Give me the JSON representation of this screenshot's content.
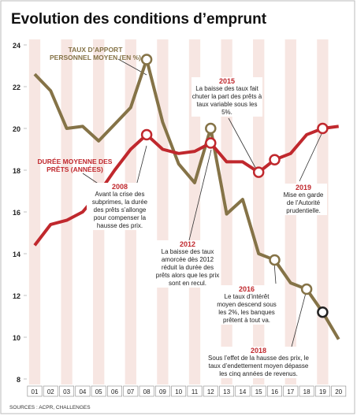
{
  "chart_data": {
    "type": "line",
    "title": "Evolution des conditions d’emprunt",
    "categories": [
      "01",
      "02",
      "03",
      "04",
      "05",
      "06",
      "07",
      "08",
      "09",
      "10",
      "11",
      "12",
      "13",
      "14",
      "15",
      "16",
      "17",
      "18",
      "19",
      "20"
    ],
    "series": [
      {
        "name": "TAUX D’APPORT PERSONNEL MOYEN (EN %)",
        "color": "#857347",
        "values": [
          22.6,
          21.8,
          20.0,
          20.1,
          19.4,
          20.2,
          21.0,
          23.3,
          20.3,
          18.3,
          17.4,
          20.0,
          15.9,
          16.6,
          14.0,
          13.7,
          12.6,
          12.3,
          11.2,
          9.9
        ],
        "markers": [
          "08",
          "12",
          "16",
          "18",
          "19"
        ]
      },
      {
        "name": "DURÉE MOYENNE DES PRÊTS (ANNÉES)",
        "color": "#c0282d",
        "values": [
          14.4,
          15.4,
          15.6,
          16.0,
          16.9,
          18.0,
          19.0,
          19.7,
          19.0,
          18.8,
          18.9,
          19.3,
          18.4,
          18.4,
          17.9,
          18.5,
          18.8,
          19.7,
          20.0,
          20.1
        ],
        "markers": [
          "08",
          "12",
          "15",
          "16",
          "19"
        ]
      }
    ],
    "ylim": [
      8,
      24
    ],
    "yticks": [
      8,
      10,
      12,
      14,
      16,
      18,
      20,
      22,
      24
    ],
    "annotations": [
      {
        "title": "2008",
        "text": "Avant la crise des subprimes, la durée des prêts s’allonge pour compenser la hausse des prix."
      },
      {
        "title": "2012",
        "text": "La baisse des taux amorcée dès 2012 réduit la durée des prêts alors que les prix sont en recul."
      },
      {
        "title": "2015",
        "text": "La baisse des taux fait chuter la part des prêts à taux variable sous les 5%."
      },
      {
        "title": "2016",
        "text": "Le taux d’intérêt moyen descend sous les 2%, les banques prêtent à tout va."
      },
      {
        "title": "2019",
        "text": "Mise en garde de l’Autorité prudentielle."
      },
      {
        "title": "2018",
        "text": "Sous l’effet de la hausse des prix, le taux d’endettement moyen dépasse les cinq années de revenus."
      }
    ],
    "source": "SOURCES : ACPR, CHALLENGES"
  }
}
